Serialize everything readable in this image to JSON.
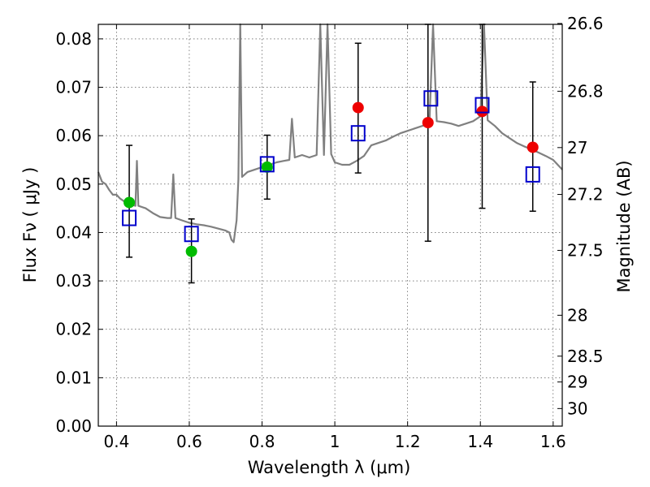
{
  "chart_data": {
    "type": "scatter",
    "xlabel": "Wavelength  λ (μm)",
    "ylabel": "Flux  Fν  ( μJy )",
    "y2label": "Magnitude (AB)",
    "xlim": [
      0.35,
      1.625
    ],
    "ylim": [
      0.0,
      0.083
    ],
    "grid": true,
    "x_ticks": [
      0.4,
      0.6,
      0.8,
      1.0,
      1.2,
      1.4,
      1.6
    ],
    "x_tick_labels": [
      "0.4",
      "0.6",
      "0.8",
      "1",
      "1.2",
      "1.4",
      "1.6"
    ],
    "y_ticks": [
      0.0,
      0.01,
      0.02,
      0.03,
      0.04,
      0.05,
      0.06,
      0.07,
      0.08
    ],
    "y_tick_labels": [
      "0.00",
      "0.01",
      "0.02",
      "0.03",
      "0.04",
      "0.05",
      "0.06",
      "0.07",
      "0.08"
    ],
    "mag_ticks": [
      26.6,
      26.8,
      27,
      27.2,
      27.5,
      28,
      28.5,
      29,
      30
    ],
    "mag_tick_labels": [
      "26.6",
      "26.8",
      "27",
      "27.2",
      "27.5",
      "28",
      "28.5",
      "29",
      "30"
    ],
    "colors": {
      "model": "#808080",
      "green_points": "#00bb00",
      "red_points": "#ee0000",
      "model_squares": "#0000cc",
      "errorbars": "#000000"
    },
    "observed_green": [
      {
        "x": 0.435,
        "y": 0.0462
      },
      {
        "x": 0.606,
        "y": 0.0361
      },
      {
        "x": 0.814,
        "y": 0.0535
      }
    ],
    "observed_red": [
      {
        "x": 1.064,
        "y": 0.0658
      },
      {
        "x": 1.256,
        "y": 0.0627
      },
      {
        "x": 1.405,
        "y": 0.065
      },
      {
        "x": 1.544,
        "y": 0.0576
      }
    ],
    "error_bars": [
      {
        "x": 0.435,
        "low": 0.0349,
        "high": 0.058
      },
      {
        "x": 0.606,
        "low": 0.0296,
        "high": 0.0428
      },
      {
        "x": 0.814,
        "low": 0.0469,
        "high": 0.0601
      },
      {
        "x": 1.064,
        "low": 0.0523,
        "high": 0.0791
      },
      {
        "x": 1.256,
        "low": 0.0382,
        "high": 0.083
      },
      {
        "x": 1.405,
        "low": 0.045,
        "high": 0.083
      },
      {
        "x": 1.544,
        "low": 0.0444,
        "high": 0.0711
      }
    ],
    "model_bandpass": [
      {
        "x": 0.435,
        "y": 0.043
      },
      {
        "x": 0.606,
        "y": 0.0397
      },
      {
        "x": 0.814,
        "y": 0.0541
      },
      {
        "x": 1.064,
        "y": 0.0605
      },
      {
        "x": 1.264,
        "y": 0.0677
      },
      {
        "x": 1.405,
        "y": 0.0663
      },
      {
        "x": 1.544,
        "y": 0.052
      }
    ],
    "model_spectrum": [
      [
        0.35,
        0.0525
      ],
      [
        0.36,
        0.0505
      ],
      [
        0.37,
        0.05
      ],
      [
        0.38,
        0.0488
      ],
      [
        0.39,
        0.0478
      ],
      [
        0.4,
        0.0478
      ],
      [
        0.41,
        0.047
      ],
      [
        0.42,
        0.0465
      ],
      [
        0.43,
        0.046
      ],
      [
        0.44,
        0.0458
      ],
      [
        0.452,
        0.0455
      ],
      [
        0.456,
        0.0548
      ],
      [
        0.46,
        0.0455
      ],
      [
        0.48,
        0.045
      ],
      [
        0.5,
        0.044
      ],
      [
        0.52,
        0.0432
      ],
      [
        0.54,
        0.043
      ],
      [
        0.55,
        0.043
      ],
      [
        0.556,
        0.052
      ],
      [
        0.562,
        0.043
      ],
      [
        0.58,
        0.0425
      ],
      [
        0.6,
        0.042
      ],
      [
        0.62,
        0.0417
      ],
      [
        0.64,
        0.0415
      ],
      [
        0.66,
        0.0412
      ],
      [
        0.68,
        0.0408
      ],
      [
        0.7,
        0.0404
      ],
      [
        0.71,
        0.04
      ],
      [
        0.716,
        0.0385
      ],
      [
        0.722,
        0.038
      ],
      [
        0.73,
        0.0425
      ],
      [
        0.735,
        0.051
      ],
      [
        0.74,
        0.083
      ],
      [
        0.745,
        0.0515
      ],
      [
        0.76,
        0.0525
      ],
      [
        0.78,
        0.053
      ],
      [
        0.8,
        0.0535
      ],
      [
        0.82,
        0.054
      ],
      [
        0.84,
        0.0545
      ],
      [
        0.86,
        0.0548
      ],
      [
        0.875,
        0.055
      ],
      [
        0.882,
        0.0635
      ],
      [
        0.89,
        0.0555
      ],
      [
        0.91,
        0.056
      ],
      [
        0.93,
        0.0555
      ],
      [
        0.95,
        0.056
      ],
      [
        0.96,
        0.083
      ],
      [
        0.97,
        0.056
      ],
      [
        0.98,
        0.083
      ],
      [
        0.99,
        0.0562
      ],
      [
        1.0,
        0.0545
      ],
      [
        1.02,
        0.054
      ],
      [
        1.04,
        0.054
      ],
      [
        1.06,
        0.0548
      ],
      [
        1.08,
        0.0558
      ],
      [
        1.1,
        0.058
      ],
      [
        1.12,
        0.0585
      ],
      [
        1.14,
        0.059
      ],
      [
        1.16,
        0.0598
      ],
      [
        1.18,
        0.0605
      ],
      [
        1.2,
        0.061
      ],
      [
        1.22,
        0.0615
      ],
      [
        1.24,
        0.062
      ],
      [
        1.26,
        0.0625
      ],
      [
        1.27,
        0.083
      ],
      [
        1.28,
        0.063
      ],
      [
        1.3,
        0.0628
      ],
      [
        1.32,
        0.0625
      ],
      [
        1.34,
        0.062
      ],
      [
        1.36,
        0.0625
      ],
      [
        1.38,
        0.063
      ],
      [
        1.4,
        0.064
      ],
      [
        1.41,
        0.083
      ],
      [
        1.42,
        0.0632
      ],
      [
        1.44,
        0.062
      ],
      [
        1.46,
        0.0605
      ],
      [
        1.48,
        0.0595
      ],
      [
        1.5,
        0.0585
      ],
      [
        1.52,
        0.0578
      ],
      [
        1.54,
        0.0572
      ],
      [
        1.56,
        0.0565
      ],
      [
        1.58,
        0.0558
      ],
      [
        1.6,
        0.055
      ],
      [
        1.625,
        0.053
      ]
    ]
  }
}
